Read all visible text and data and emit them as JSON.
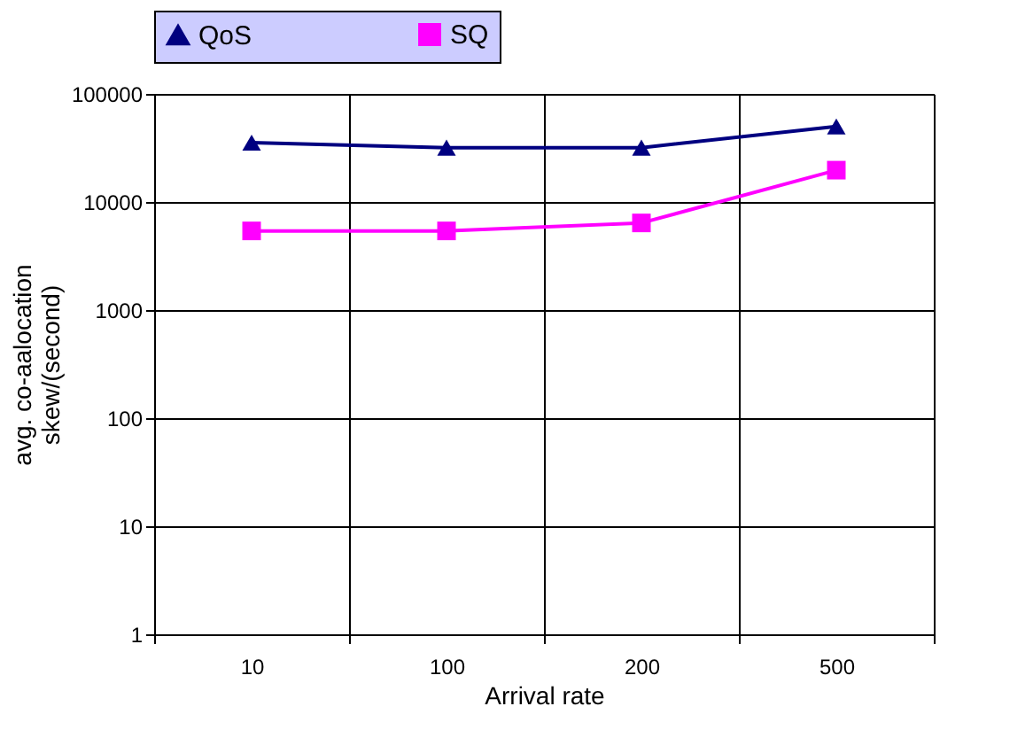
{
  "chart_data": {
    "type": "line",
    "xlabel": "Arrival rate",
    "ylabel": "avg. co-aalocation skew/(second)",
    "categories": [
      "10",
      "100",
      "200",
      "500"
    ],
    "series": [
      {
        "name": "QoS",
        "color": "#000080",
        "marker": "triangle",
        "values": [
          35400,
          31800,
          31800,
          50000
        ]
      },
      {
        "name": "SQ",
        "color": "#ff00ff",
        "marker": "square",
        "values": [
          5400,
          5400,
          6400,
          19700
        ]
      }
    ],
    "log": true,
    "ylim": [
      1,
      100000
    ],
    "yticks": [
      1,
      10,
      100,
      1000,
      10000,
      100000
    ],
    "grid": true,
    "legend": "top",
    "line_style": "solid"
  }
}
